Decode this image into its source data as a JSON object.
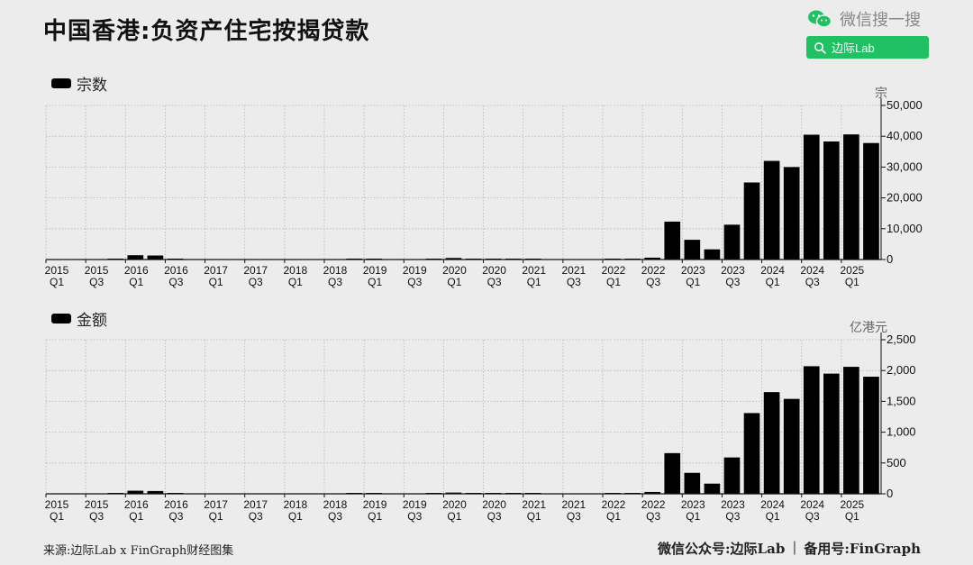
{
  "header": {
    "title": "中国香港:负资产住宅按揭贷款",
    "brand_label": "微信搜一搜",
    "search_text": "边际Lab"
  },
  "footer": {
    "source": "来源:边际Lab x FinGraph财经图集",
    "account": "微信公众号:边际Lab",
    "separator": "|",
    "backup": "备用号:FinGraph"
  },
  "colors": {
    "bar": "#000000",
    "background": "#ececec",
    "accent": "#1fc162"
  },
  "chart_data": [
    {
      "type": "bar",
      "legend": "宗数",
      "unit": "宗",
      "ylim": [
        0,
        50000
      ],
      "yticks": [
        0,
        10000,
        20000,
        30000,
        40000,
        50000
      ],
      "ytick_labels": [
        "0",
        "10,000",
        "20,000",
        "30,000",
        "40,000",
        "50,000"
      ],
      "grid": true,
      "axis_side": "right",
      "categories": [
        "2015Q1",
        "2015Q2",
        "2015Q3",
        "2015Q4",
        "2016Q1",
        "2016Q2",
        "2016Q3",
        "2016Q4",
        "2017Q1",
        "2017Q2",
        "2017Q3",
        "2017Q4",
        "2018Q1",
        "2018Q2",
        "2018Q3",
        "2018Q4",
        "2019Q1",
        "2019Q2",
        "2019Q3",
        "2019Q4",
        "2020Q1",
        "2020Q2",
        "2020Q3",
        "2020Q4",
        "2021Q1",
        "2021Q2",
        "2021Q3",
        "2021Q4",
        "2022Q1",
        "2022Q2",
        "2022Q3",
        "2022Q4",
        "2023Q1",
        "2023Q2",
        "2023Q3",
        "2023Q4",
        "2024Q1",
        "2024Q2",
        "2024Q3",
        "2024Q4",
        "2025Q1",
        "2025Q2"
      ],
      "values": [
        0,
        0,
        0,
        100,
        1400,
        1300,
        200,
        0,
        0,
        0,
        0,
        0,
        0,
        0,
        0,
        300,
        100,
        0,
        0,
        200,
        500,
        200,
        200,
        200,
        100,
        0,
        0,
        0,
        100,
        100,
        600,
        12300,
        6400,
        3300,
        11300,
        25000,
        32000,
        30000,
        40500,
        38300,
        40600,
        37800
      ],
      "xtick_labels": [
        {
          "index": 0,
          "year": "2015",
          "q": "Q1"
        },
        {
          "index": 2,
          "year": "2015",
          "q": "Q3"
        },
        {
          "index": 4,
          "year": "2016",
          "q": "Q1"
        },
        {
          "index": 6,
          "year": "2016",
          "q": "Q3"
        },
        {
          "index": 8,
          "year": "2017",
          "q": "Q1"
        },
        {
          "index": 10,
          "year": "2017",
          "q": "Q3"
        },
        {
          "index": 12,
          "year": "2018",
          "q": "Q1"
        },
        {
          "index": 14,
          "year": "2018",
          "q": "Q3"
        },
        {
          "index": 16,
          "year": "2019",
          "q": "Q1"
        },
        {
          "index": 18,
          "year": "2019",
          "q": "Q3"
        },
        {
          "index": 20,
          "year": "2020",
          "q": "Q1"
        },
        {
          "index": 22,
          "year": "2020",
          "q": "Q3"
        },
        {
          "index": 24,
          "year": "2021",
          "q": "Q1"
        },
        {
          "index": 26,
          "year": "2021",
          "q": "Q3"
        },
        {
          "index": 28,
          "year": "2022",
          "q": "Q1"
        },
        {
          "index": 30,
          "year": "2022",
          "q": "Q3"
        },
        {
          "index": 32,
          "year": "2023",
          "q": "Q1"
        },
        {
          "index": 34,
          "year": "2023",
          "q": "Q3"
        },
        {
          "index": 36,
          "year": "2024",
          "q": "Q1"
        },
        {
          "index": 38,
          "year": "2024",
          "q": "Q3"
        },
        {
          "index": 40,
          "year": "2025",
          "q": "Q1"
        }
      ]
    },
    {
      "type": "bar",
      "legend": "金额",
      "unit": "亿港元",
      "ylim": [
        0,
        2500
      ],
      "yticks": [
        0,
        500,
        1000,
        1500,
        2000,
        2500
      ],
      "ytick_labels": [
        "0",
        "500",
        "1,000",
        "1,500",
        "2,000",
        "2,500"
      ],
      "grid": true,
      "axis_side": "right",
      "categories": [
        "2015Q1",
        "2015Q2",
        "2015Q3",
        "2015Q4",
        "2016Q1",
        "2016Q2",
        "2016Q3",
        "2016Q4",
        "2017Q1",
        "2017Q2",
        "2017Q3",
        "2017Q4",
        "2018Q1",
        "2018Q2",
        "2018Q3",
        "2018Q4",
        "2019Q1",
        "2019Q2",
        "2019Q3",
        "2019Q4",
        "2020Q1",
        "2020Q2",
        "2020Q3",
        "2020Q4",
        "2021Q1",
        "2021Q2",
        "2021Q3",
        "2021Q4",
        "2022Q1",
        "2022Q2",
        "2022Q3",
        "2022Q4",
        "2023Q1",
        "2023Q2",
        "2023Q3",
        "2023Q4",
        "2024Q1",
        "2024Q2",
        "2024Q3",
        "2024Q4",
        "2025Q1",
        "2025Q2"
      ],
      "values": [
        0,
        0,
        0,
        5,
        50,
        45,
        8,
        0,
        0,
        0,
        0,
        0,
        0,
        0,
        0,
        12,
        4,
        0,
        0,
        8,
        20,
        10,
        12,
        12,
        5,
        0,
        0,
        0,
        5,
        5,
        30,
        660,
        340,
        165,
        590,
        1310,
        1650,
        1540,
        2070,
        1950,
        2060,
        1900
      ],
      "xtick_labels": [
        {
          "index": 0,
          "year": "2015",
          "q": "Q1"
        },
        {
          "index": 2,
          "year": "2015",
          "q": "Q3"
        },
        {
          "index": 4,
          "year": "2016",
          "q": "Q1"
        },
        {
          "index": 6,
          "year": "2016",
          "q": "Q3"
        },
        {
          "index": 8,
          "year": "2017",
          "q": "Q1"
        },
        {
          "index": 10,
          "year": "2017",
          "q": "Q3"
        },
        {
          "index": 12,
          "year": "2018",
          "q": "Q1"
        },
        {
          "index": 14,
          "year": "2018",
          "q": "Q3"
        },
        {
          "index": 16,
          "year": "2019",
          "q": "Q1"
        },
        {
          "index": 18,
          "year": "2019",
          "q": "Q3"
        },
        {
          "index": 20,
          "year": "2020",
          "q": "Q1"
        },
        {
          "index": 22,
          "year": "2020",
          "q": "Q3"
        },
        {
          "index": 24,
          "year": "2021",
          "q": "Q1"
        },
        {
          "index": 26,
          "year": "2021",
          "q": "Q3"
        },
        {
          "index": 28,
          "year": "2022",
          "q": "Q1"
        },
        {
          "index": 30,
          "year": "2022",
          "q": "Q3"
        },
        {
          "index": 32,
          "year": "2023",
          "q": "Q1"
        },
        {
          "index": 34,
          "year": "2023",
          "q": "Q3"
        },
        {
          "index": 36,
          "year": "2024",
          "q": "Q1"
        },
        {
          "index": 38,
          "year": "2024",
          "q": "Q3"
        },
        {
          "index": 40,
          "year": "2025",
          "q": "Q1"
        }
      ]
    }
  ]
}
